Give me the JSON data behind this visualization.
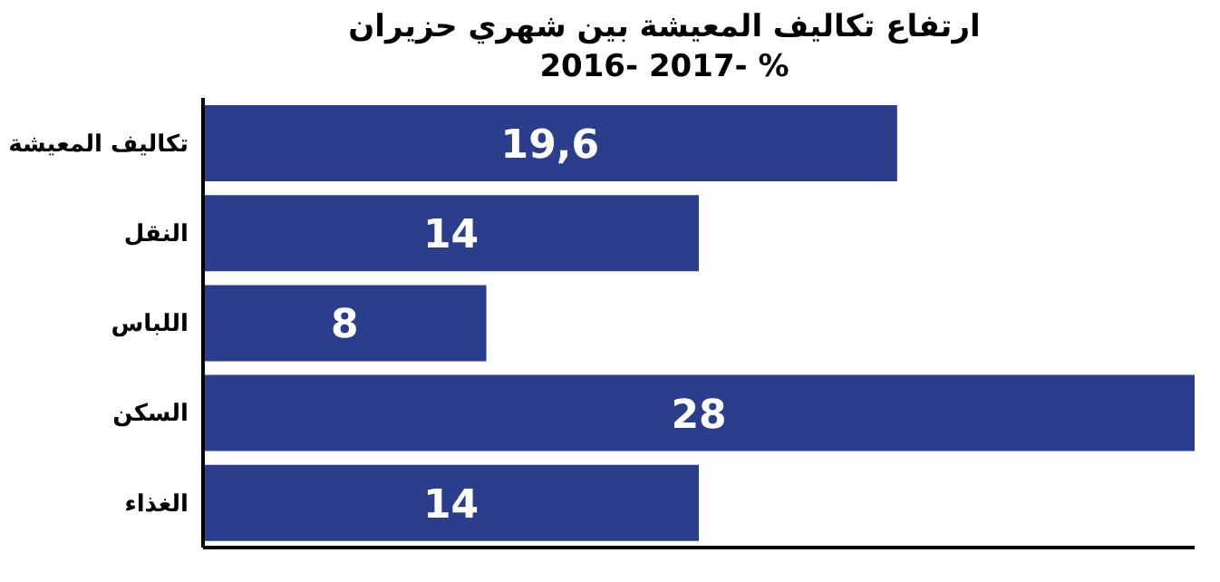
{
  "chart_data": {
    "type": "bar",
    "orientation": "horizontal",
    "title": "ارتفاع تكاليف المعيشة بين شهري حزيران",
    "subtitle": "2016- 2017- %",
    "categories": [
      "تكاليف المعيشة",
      "النقل",
      "اللباس",
      "السكن",
      "الغذاء"
    ],
    "values": [
      19.6,
      14,
      8,
      28,
      14
    ],
    "value_labels": [
      "19,6",
      "14",
      "8",
      "28",
      "14"
    ],
    "color": "#2b3e8c",
    "tick_labels": "y"
  }
}
